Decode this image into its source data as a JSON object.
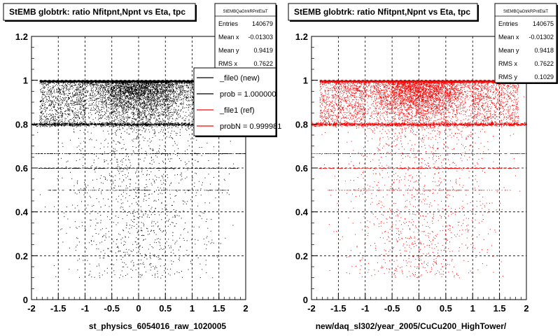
{
  "chart_data": [
    {
      "type": "scatter",
      "title": "StEMB globtrk: ratio Nfitpnt,Npnt vs Eta, tpc",
      "xlabel": "st_physics_6054016_raw_1020005",
      "ylabel": "",
      "xlim": [
        -2,
        2
      ],
      "ylim": [
        0,
        1.2
      ],
      "xticks": [
        "-2",
        "-1.5",
        "-1",
        "-0.5",
        "0",
        "0.5",
        "1",
        "1.5",
        "2"
      ],
      "yticks": [
        "0",
        "0.2",
        "0.4",
        "0.6",
        "0.8",
        "1",
        "1.2"
      ],
      "grid": true,
      "marker_color": "#000000",
      "stats": {
        "name": "StEMBQaGtrkRPntEtaT",
        "rows": [
          {
            "label": "Entries",
            "value": "140679"
          },
          {
            "label": "Mean x",
            "value": "-0.01303"
          },
          {
            "label": "Mean y",
            "value": "0.9419"
          },
          {
            "label": "RMS x",
            "value": "0.7622"
          }
        ]
      },
      "legend": [
        {
          "label": "_file0 (new)",
          "color": "#000000"
        },
        {
          "label": "prob = 1.000000",
          "color": "#000000"
        },
        {
          "label": "_file1 (ref)",
          "color": "#ff0000"
        },
        {
          "label": "probN = 0.999981",
          "color": "#ff0000"
        }
      ],
      "bands": [
        {
          "y": 1.0,
          "x_range": [
            -1.85,
            1.85
          ],
          "weight": "dense"
        },
        {
          "y": 0.8,
          "x_range": [
            -2,
            2
          ],
          "weight": "moderate"
        },
        {
          "y": 0.667,
          "x_range": [
            -2,
            2
          ],
          "weight": "light"
        },
        {
          "y": 0.6,
          "x_range": [
            -1.9,
            1.9
          ],
          "weight": "light"
        },
        {
          "y": 0.5,
          "x_range": [
            -1.7,
            1.7
          ],
          "weight": "light"
        }
      ]
    },
    {
      "type": "scatter",
      "title": "StEMB globtrk: ratio Nfitpnt,Npnt vs Eta, tpc",
      "xlabel": "new/daq_sl302/year_2005/CuCu200_HighTower/",
      "ylabel": "",
      "xlim": [
        -2,
        2
      ],
      "ylim": [
        0,
        1.2
      ],
      "xticks": [
        "-2",
        "-1.5",
        "-1",
        "-0.5",
        "0",
        "0.5",
        "1",
        "1.5",
        "2"
      ],
      "yticks": [
        "0",
        "0.2",
        "0.4",
        "0.6",
        "0.8",
        "1",
        "1.2"
      ],
      "grid": true,
      "marker_color": "#ff0000",
      "stats": {
        "name": "StEMBQaGtrkRPntEtaT",
        "rows": [
          {
            "label": "Entries",
            "value": "140675"
          },
          {
            "label": "Mean x",
            "value": "-0.01302"
          },
          {
            "label": "Mean y",
            "value": "0.9418"
          },
          {
            "label": "RMS x",
            "value": "0.7622"
          },
          {
            "label": "RMS y",
            "value": "0.1029"
          }
        ]
      },
      "bands": [
        {
          "y": 1.0,
          "x_range": [
            -1.85,
            1.85
          ],
          "weight": "dense"
        },
        {
          "y": 0.8,
          "x_range": [
            -2,
            2
          ],
          "weight": "moderate"
        },
        {
          "y": 0.667,
          "x_range": [
            -2,
            2
          ],
          "weight": "light"
        },
        {
          "y": 0.6,
          "x_range": [
            -1.9,
            1.9
          ],
          "weight": "light"
        },
        {
          "y": 0.5,
          "x_range": [
            -1.7,
            1.7
          ],
          "weight": "light"
        }
      ]
    }
  ]
}
